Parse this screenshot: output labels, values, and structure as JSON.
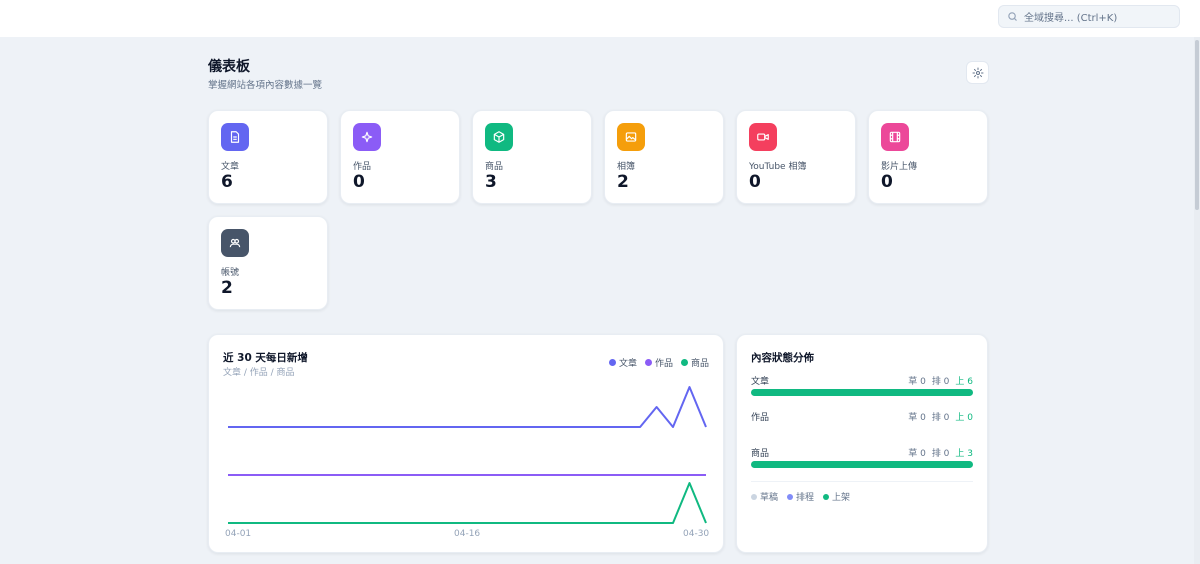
{
  "search": {
    "placeholder": "全域搜尋... (Ctrl+K)",
    "icon": "search-icon"
  },
  "header": {
    "title": "儀表板",
    "subtitle": "掌握網站各項內容數據一覽",
    "settings_icon": "gear-icon"
  },
  "stats": [
    {
      "label": "文章",
      "value": "6",
      "icon": "document-icon",
      "color": "#6366f1"
    },
    {
      "label": "作品",
      "value": "0",
      "icon": "sparkles-icon",
      "color": "#8b5cf6"
    },
    {
      "label": "商品",
      "value": "3",
      "icon": "cube-icon",
      "color": "#10b981"
    },
    {
      "label": "相簿",
      "value": "2",
      "icon": "image-icon",
      "color": "#f59e0b"
    },
    {
      "label": "YouTube 相簿",
      "value": "0",
      "icon": "video-icon",
      "color": "#f43f5e"
    },
    {
      "label": "影片上傳",
      "value": "0",
      "icon": "film-icon",
      "color": "#ec4899"
    },
    {
      "label": "帳號",
      "value": "2",
      "icon": "users-icon",
      "color": "#475569"
    }
  ],
  "trend": {
    "title": "近 30 天每日新增",
    "subtitle": "文章 / 作品 / 商品",
    "legend": [
      "文章",
      "作品",
      "商品"
    ]
  },
  "chart_data": {
    "type": "line",
    "title": "近 30 天每日新增",
    "x_ticks": [
      "04-01",
      "04-16",
      "04-30"
    ],
    "series": [
      {
        "name": "文章",
        "color": "#6366f1",
        "values": [
          0,
          0,
          0,
          0,
          0,
          0,
          0,
          0,
          0,
          0,
          0,
          0,
          0,
          0,
          0,
          0,
          0,
          0,
          0,
          0,
          0,
          0,
          0,
          0,
          0,
          0,
          1,
          0,
          2,
          0
        ]
      },
      {
        "name": "作品",
        "color": "#8b5cf6",
        "values": [
          0,
          0,
          0,
          0,
          0,
          0,
          0,
          0,
          0,
          0,
          0,
          0,
          0,
          0,
          0,
          0,
          0,
          0,
          0,
          0,
          0,
          0,
          0,
          0,
          0,
          0,
          0,
          0,
          0,
          0
        ]
      },
      {
        "name": "商品",
        "color": "#10b981",
        "values": [
          0,
          0,
          0,
          0,
          0,
          0,
          0,
          0,
          0,
          0,
          0,
          0,
          0,
          0,
          0,
          0,
          0,
          0,
          0,
          0,
          0,
          0,
          0,
          0,
          0,
          0,
          0,
          0,
          3,
          0
        ]
      }
    ]
  },
  "status": {
    "title": "內容狀態分佈",
    "rows": [
      {
        "name": "文章",
        "draft_text": "草 0",
        "scheduled_text": "排 0",
        "published_text": "上 6",
        "draft": 0,
        "scheduled": 0,
        "published": 6
      },
      {
        "name": "作品",
        "draft_text": "草 0",
        "scheduled_text": "排 0",
        "published_text": "上 0",
        "draft": 0,
        "scheduled": 0,
        "published": 0
      },
      {
        "name": "商品",
        "draft_text": "草 0",
        "scheduled_text": "排 0",
        "published_text": "上 3",
        "draft": 0,
        "scheduled": 0,
        "published": 3
      }
    ],
    "legend": [
      {
        "label": "草稿",
        "color": "#cbd5e1"
      },
      {
        "label": "排程",
        "color": "#818cf8"
      },
      {
        "label": "上架",
        "color": "#10b981"
      }
    ]
  }
}
